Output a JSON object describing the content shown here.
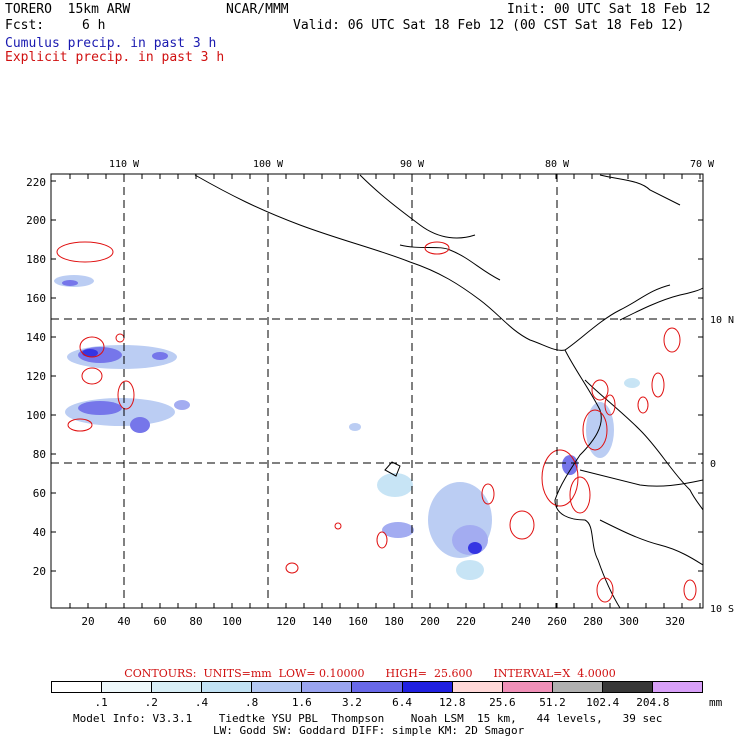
{
  "header": {
    "model": "TORERO  15km ARW",
    "org": "NCAR/MMM",
    "init": "Init: 00 UTC Sat 18 Feb 12",
    "fcst_label": "Fcst:",
    "fcst_value": "6 h",
    "valid": "Valid: 06 UTC Sat 18 Feb 12 (00 CST Sat 18 Feb 12)",
    "cumulus": "Cumulus precip. in past 3 h",
    "explicit": "Explicit precip. in past 3 h"
  },
  "map": {
    "top_lon_labels": [
      "110 W",
      "100 W",
      "90 W",
      "80 W",
      "70 W"
    ],
    "right_lat_labels": [
      "10 N",
      "0",
      "10 S"
    ],
    "y_ticks": [
      "220",
      "200",
      "180",
      "160",
      "140",
      "120",
      "100",
      "80",
      "60",
      "40",
      "20"
    ],
    "x_ticks": [
      "20",
      "40",
      "60",
      "80",
      "100",
      "120",
      "140",
      "160",
      "180",
      "200",
      "220",
      "240",
      "260",
      "280",
      "300",
      "320"
    ],
    "colors": {
      "cumulus": "#4040e0",
      "explicit": "#e01010",
      "coast": "#000000"
    }
  },
  "legend": {
    "contours": "CONTOURS:  UNITS=mm  LOW= 0.10000      HIGH=  25.600      INTERVAL=X  4.0000",
    "scale_values": [
      ".1",
      ".2",
      ".4",
      ".8",
      "1.6",
      "3.2",
      "6.4",
      "12.8",
      "25.6",
      "51.2",
      "102.4",
      "204.8"
    ],
    "scale_unit": "mm",
    "scale_colors": [
      "#ffffff",
      "#eef8fb",
      "#d8eef6",
      "#c2e2f4",
      "#b4c8f2",
      "#9aa4f0",
      "#6868e8",
      "#2020e0",
      "#ffd8d8",
      "#f090b8",
      "#b0b0b0",
      "#383838",
      "#d8a0f8"
    ],
    "model_info_1": "Model Info: V3.3.1    Tiedtke YSU PBL  Thompson    Noah LSM  15 km,   44 levels,   39 sec",
    "model_info_2": "LW: Godd SW: Goddard DIFF: simple KM: 2D Smagor"
  }
}
